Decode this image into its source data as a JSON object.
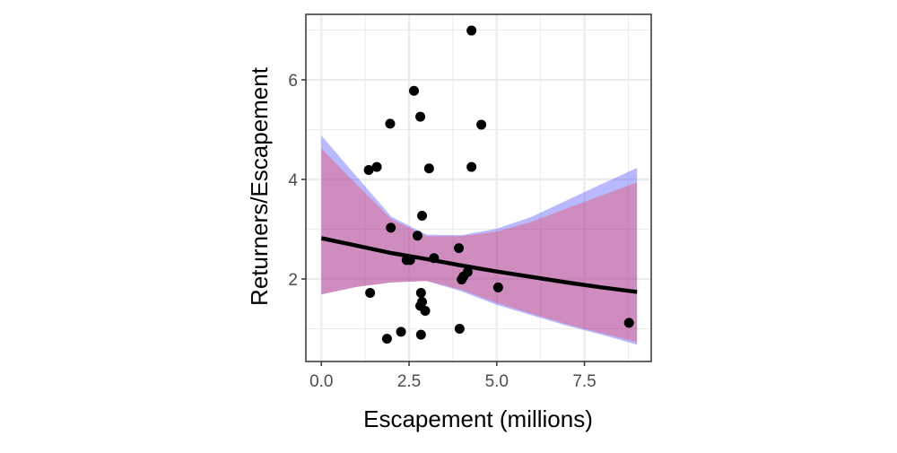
{
  "chart_data": {
    "type": "scatter",
    "xlabel": "Escapement (millions)",
    "ylabel": "Returners/Escapement",
    "xlim": [
      -0.45,
      9.4
    ],
    "ylim": [
      0.4,
      7.3
    ],
    "x_ticks": [
      0,
      2.5,
      5,
      7.5
    ],
    "x_tick_labels": [
      "0.0",
      "2.5",
      "5.0",
      "7.5"
    ],
    "y_ticks": [
      2,
      4,
      6
    ],
    "y_tick_labels": [
      "2",
      "4",
      "6"
    ],
    "grid": true,
    "points": [
      [
        4.28,
        6.99
      ],
      [
        2.64,
        5.78
      ],
      [
        2.82,
        5.26
      ],
      [
        1.96,
        5.12
      ],
      [
        4.56,
        5.1
      ],
      [
        1.35,
        4.19
      ],
      [
        1.58,
        4.25
      ],
      [
        3.07,
        4.22
      ],
      [
        4.28,
        4.25
      ],
      [
        2.87,
        3.27
      ],
      [
        1.98,
        3.03
      ],
      [
        2.74,
        2.87
      ],
      [
        3.92,
        2.62
      ],
      [
        2.43,
        2.38
      ],
      [
        2.53,
        2.38
      ],
      [
        3.21,
        2.42
      ],
      [
        4.17,
        2.14
      ],
      [
        4.05,
        2.05
      ],
      [
        4.0,
        1.99
      ],
      [
        5.04,
        1.83
      ],
      [
        1.39,
        1.72
      ],
      [
        2.84,
        1.72
      ],
      [
        2.87,
        1.54
      ],
      [
        2.82,
        1.46
      ],
      [
        2.96,
        1.36
      ],
      [
        8.77,
        1.12
      ],
      [
        3.94,
        1.0
      ],
      [
        2.27,
        0.94
      ],
      [
        1.87,
        0.8
      ],
      [
        2.84,
        0.88
      ]
    ],
    "fit_line": {
      "x": [
        0,
        1,
        2,
        3,
        4,
        5,
        6,
        7,
        8,
        9
      ],
      "y": [
        2.82,
        2.67,
        2.52,
        2.4,
        2.27,
        2.15,
        2.04,
        1.93,
        1.83,
        1.74
      ],
      "color": "#000000"
    },
    "ribbons": [
      {
        "color": "#0000ff",
        "x": [
          0,
          1,
          2,
          3,
          4,
          5,
          6,
          7,
          8,
          9
        ],
        "lower": [
          1.69,
          1.84,
          1.93,
          1.96,
          1.75,
          1.48,
          1.27,
          1.06,
          0.88,
          0.68
        ],
        "upper": [
          4.88,
          4.06,
          3.25,
          2.89,
          2.88,
          3.01,
          3.25,
          3.58,
          3.91,
          4.23
        ]
      },
      {
        "color": "#ff0000",
        "x": [
          0,
          1,
          2,
          3,
          4,
          5,
          6,
          7,
          8,
          9
        ],
        "lower": [
          1.69,
          1.84,
          1.93,
          1.96,
          1.78,
          1.52,
          1.3,
          1.09,
          0.91,
          0.73
        ],
        "upper": [
          4.62,
          3.9,
          3.2,
          2.86,
          2.86,
          2.95,
          3.15,
          3.42,
          3.68,
          3.94
        ]
      }
    ]
  }
}
